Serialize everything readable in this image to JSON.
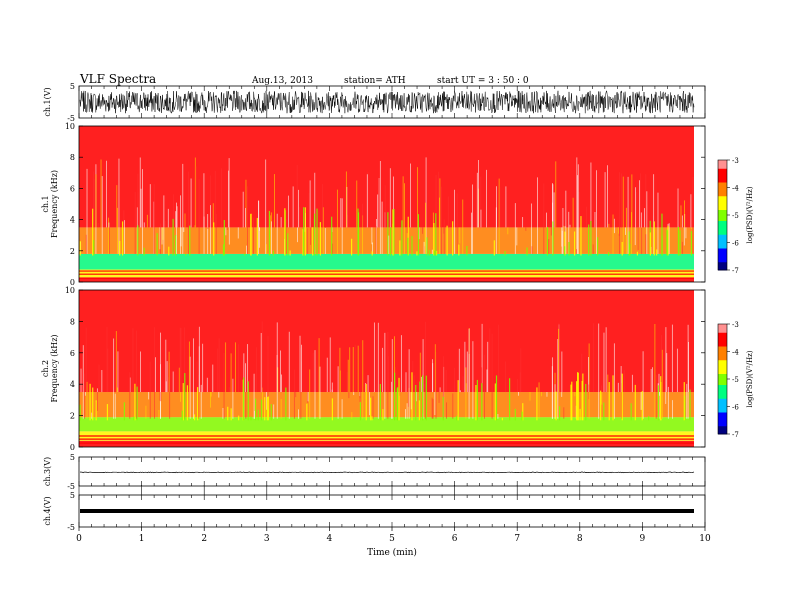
{
  "header": {
    "title": "VLF  Spectra",
    "date": "Aug.13, 2013",
    "station": "station= ATH",
    "start": "start  UT  =   3 : 50 : 0"
  },
  "colors": {
    "spectrum_scale": [
      "#000080",
      "#0000ff",
      "#00c0ff",
      "#00ff80",
      "#80ff00",
      "#ffff00",
      "#ff8000",
      "#ff0000",
      "#ff9090",
      "#ffffff"
    ],
    "waveform": "#000000",
    "background": "#ffffff"
  },
  "chart_data": [
    {
      "type": "line",
      "panel": "ch1-waveform",
      "ylabel": "ch.1(V)",
      "ylim": [
        -5,
        5
      ],
      "y_ticks": [
        "5",
        "-5"
      ],
      "x": [
        0,
        9.82
      ],
      "description_values": {
        "amplitude_range": [
          -3.5,
          3.5
        ]
      }
    },
    {
      "type": "heatmap",
      "panel": "ch1-spectrogram",
      "ylabel": "ch.1\nFrequency  (kHz)",
      "ylim": [
        0,
        10
      ],
      "y_ticks": [
        "0",
        "2",
        "4",
        "6",
        "8",
        "10"
      ],
      "xlim": [
        0,
        9.82
      ],
      "colorbar": {
        "label": "log(PSD)(V²/Hz)",
        "range": [
          -7,
          -3
        ],
        "ticks": [
          "-3",
          "-4",
          "-5",
          "-6",
          "-7"
        ]
      },
      "bands_khz": [
        {
          "from": 0,
          "to": 0.3,
          "level": -3.6
        },
        {
          "from": 0.3,
          "to": 0.8,
          "level": -4.6
        },
        {
          "from": 0.8,
          "to": 1.8,
          "level": -5.3
        },
        {
          "from": 1.8,
          "to": 3.5,
          "level": -4.2
        },
        {
          "from": 3.5,
          "to": 10,
          "level": -3.3
        }
      ]
    },
    {
      "type": "heatmap",
      "panel": "ch2-spectrogram",
      "ylabel": "ch.2\nFrequency  (kHz)",
      "ylim": [
        0,
        10
      ],
      "y_ticks": [
        "0",
        "2",
        "4",
        "6",
        "8",
        "10"
      ],
      "xlim": [
        0,
        9.82
      ],
      "colorbar": {
        "label": "log(PSD)(V²/Hz)",
        "range": [
          -7,
          -3
        ],
        "ticks": [
          "-3",
          "-4",
          "-5",
          "-6",
          "-7"
        ]
      },
      "bands_khz": [
        {
          "from": 0,
          "to": 0.4,
          "level": -3.7
        },
        {
          "from": 0.4,
          "to": 1.0,
          "level": -4.3
        },
        {
          "from": 1.0,
          "to": 1.9,
          "level": -5.2
        },
        {
          "from": 1.9,
          "to": 3.5,
          "level": -4.2
        },
        {
          "from": 3.5,
          "to": 10,
          "level": -3.3
        }
      ]
    },
    {
      "type": "line",
      "panel": "ch3-waveform",
      "ylabel": "ch.3(V)",
      "ylim": [
        -5,
        5
      ],
      "y_ticks": [
        "5",
        "-5"
      ],
      "x": [
        0,
        9.82
      ],
      "y": [
        -0.3,
        -0.3
      ]
    },
    {
      "type": "line",
      "panel": "ch4-waveform",
      "ylabel": "ch.4(V)",
      "ylim": [
        -5,
        5
      ],
      "y_ticks": [
        "5",
        "-5"
      ],
      "x": [
        0,
        9.82
      ],
      "y": [
        0,
        0
      ]
    }
  ],
  "x_axis": {
    "label": "Time  (min)",
    "range": [
      0,
      10
    ],
    "ticks": [
      "0",
      "1",
      "2",
      "3",
      "4",
      "5",
      "6",
      "7",
      "8",
      "9",
      "10"
    ]
  }
}
